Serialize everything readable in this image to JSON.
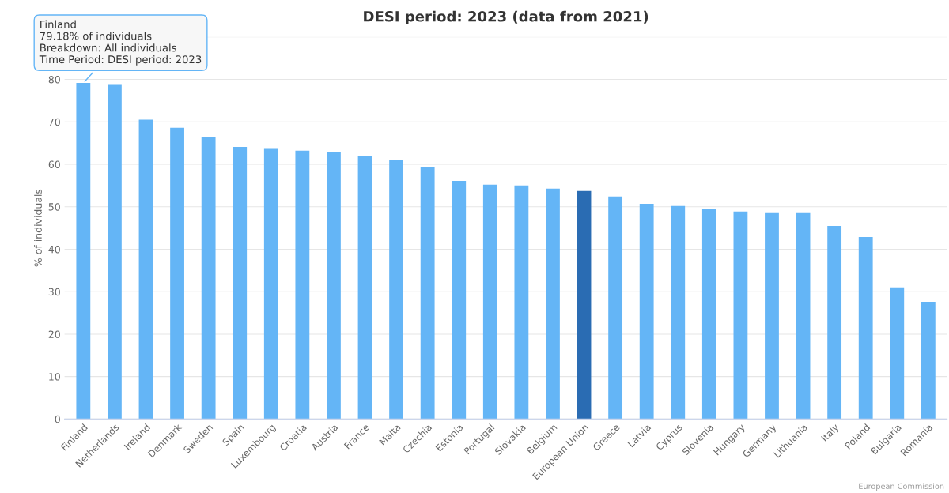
{
  "chart_data": {
    "type": "bar",
    "title": "DESI period: 2023 (data from 2021)",
    "ylabel": "% of individuals",
    "categories": [
      "Finland",
      "Netherlands",
      "Ireland",
      "Denmark",
      "Sweden",
      "Spain",
      "Luxembourg",
      "Croatia",
      "Austria",
      "France",
      "Malta",
      "Czechia",
      "Estonia",
      "Portugal",
      "Slovakia",
      "Belgium",
      "European Union",
      "Greece",
      "Latvia",
      "Cyprus",
      "Slovenia",
      "Hungary",
      "Germany",
      "Lithuania",
      "Italy",
      "Poland",
      "Bulgaria",
      "Romania"
    ],
    "values": [
      79.18,
      78.9,
      70.5,
      68.6,
      66.4,
      64.1,
      63.8,
      63.2,
      63.0,
      61.9,
      61.0,
      59.3,
      56.1,
      55.2,
      55.0,
      54.3,
      53.7,
      52.4,
      50.7,
      50.2,
      49.6,
      48.9,
      48.7,
      48.7,
      45.5,
      42.9,
      31.0,
      27.6
    ],
    "colors": [
      "#64b5f6",
      "#64b5f6",
      "#64b5f6",
      "#64b5f6",
      "#64b5f6",
      "#64b5f6",
      "#64b5f6",
      "#64b5f6",
      "#64b5f6",
      "#64b5f6",
      "#64b5f6",
      "#64b5f6",
      "#64b5f6",
      "#64b5f6",
      "#64b5f6",
      "#64b5f6",
      "#2a6cb3",
      "#64b5f6",
      "#64b5f6",
      "#64b5f6",
      "#64b5f6",
      "#64b5f6",
      "#64b5f6",
      "#64b5f6",
      "#64b5f6",
      "#64b5f6",
      "#64b5f6",
      "#64b5f6"
    ],
    "ylim": [
      0,
      90
    ],
    "yticks": [
      0,
      10,
      20,
      30,
      40,
      50,
      60,
      70,
      80,
      {
        "value": 90,
        "label": null
      }
    ],
    "grid": "y",
    "annotations": [
      {
        "text": "Finland\n79.18% of individuals\nBreakdown: All individuals\nTime Period: DESI period: 2023",
        "x": "Finland",
        "y": 79.18
      },
      "European Commission"
    ]
  }
}
